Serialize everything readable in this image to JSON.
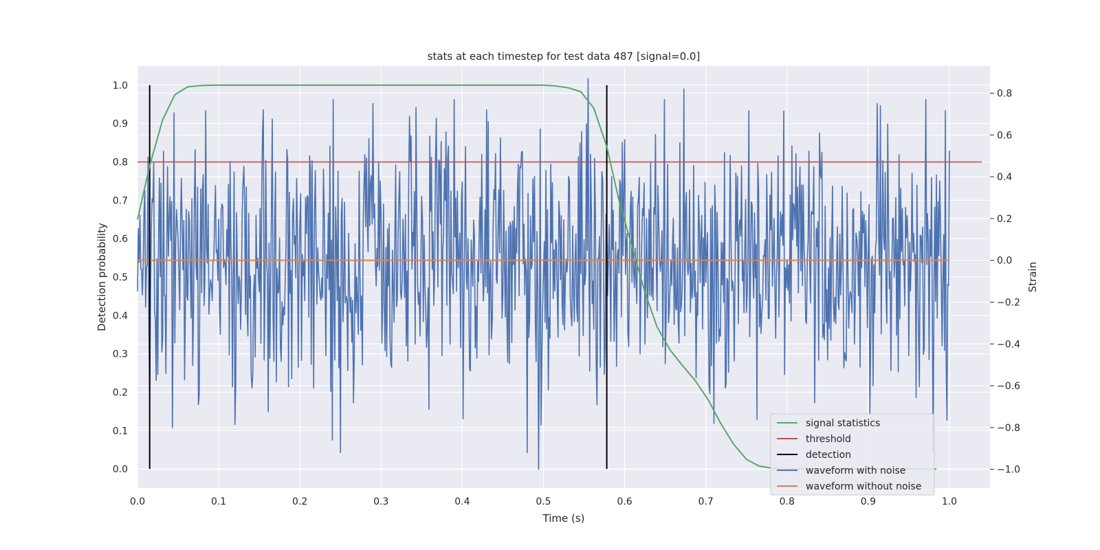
{
  "chart_data": {
    "type": "line",
    "title": "stats at each timestep for test data 487 [signal=0.0]",
    "xlabel": "Time (s)",
    "ylabel": "Detection probability",
    "ylabel_right": "Strain",
    "xlim": [
      0.0,
      1.05
    ],
    "ylim": [
      -0.05,
      1.05
    ],
    "ylim_right": [
      -1.09,
      0.93
    ],
    "xticks": [
      "0.0",
      "0.1",
      "0.2",
      "0.3",
      "0.4",
      "0.5",
      "0.6",
      "0.7",
      "0.8",
      "0.9",
      "1.0"
    ],
    "yticks": [
      "0.0",
      "0.1",
      "0.2",
      "0.3",
      "0.4",
      "0.5",
      "0.6",
      "0.7",
      "0.8",
      "0.9",
      "1.0"
    ],
    "yticks_right": [
      "−1.0",
      "−0.8",
      "−0.6",
      "−0.4",
      "−0.2",
      "0.0",
      "0.2",
      "0.4",
      "0.6",
      "0.8"
    ],
    "grid": true,
    "legend_position": "lower-right",
    "background": "#EAEAF2",
    "series": [
      {
        "name": "signal statistics",
        "color": "#55A868",
        "axis": "left",
        "x": [
          0.0,
          0.015,
          0.031,
          0.046,
          0.062,
          0.078,
          0.093,
          0.2,
          0.3,
          0.4,
          0.5,
          0.515,
          0.531,
          0.546,
          0.562,
          0.578,
          0.593,
          0.609,
          0.625,
          0.64,
          0.656,
          0.671,
          0.687,
          0.703,
          0.718,
          0.734,
          0.75,
          0.765,
          0.781,
          0.796,
          0.812,
          0.828,
          0.843,
          0.859,
          0.875,
          0.89,
          0.906,
          0.921,
          0.937,
          0.953,
          0.968,
          0.984
        ],
        "y": [
          0.65,
          0.79,
          0.91,
          0.975,
          0.996,
          0.999,
          1.0,
          1.0,
          1.0,
          1.0,
          1.0,
          0.998,
          0.993,
          0.983,
          0.94,
          0.84,
          0.7,
          0.58,
          0.46,
          0.37,
          0.31,
          0.27,
          0.23,
          0.18,
          0.12,
          0.065,
          0.025,
          0.008,
          0.002,
          0.0,
          0.0,
          0.0,
          0.0,
          0.0,
          0.0,
          0.0,
          0.0,
          0.0,
          0.0,
          0.0,
          0.0,
          0.0
        ]
      },
      {
        "name": "threshold",
        "color": "#C44E52",
        "axis": "left",
        "x": [
          0.0,
          1.04
        ],
        "y": [
          0.8,
          0.8
        ]
      },
      {
        "name": "detection",
        "color": "#000000",
        "axis": "left",
        "segments": [
          {
            "x": 0.015,
            "y": [
              0.0,
              1.0
            ]
          },
          {
            "x": 0.578,
            "y": [
              0.0,
              1.0
            ]
          }
        ]
      },
      {
        "name": "waveform with noise",
        "color": "#4C72B0",
        "axis": "right",
        "x_range": [
          0.0,
          1.0
        ],
        "value_range": [
          -1.0,
          0.87
        ],
        "peaks": [
          {
            "x": 0.015,
            "y": -0.7
          },
          {
            "x": 0.043,
            "y": -0.8
          },
          {
            "x": 0.155,
            "y": 0.72
          },
          {
            "x": 0.24,
            "y": -0.86
          },
          {
            "x": 0.25,
            "y": -0.92
          },
          {
            "x": 0.29,
            "y": 0.75
          },
          {
            "x": 0.39,
            "y": 0.77
          },
          {
            "x": 0.48,
            "y": -0.92
          },
          {
            "x": 0.494,
            "y": -1.0
          },
          {
            "x": 0.555,
            "y": 0.87
          },
          {
            "x": 0.673,
            "y": 0.82
          },
          {
            "x": 0.71,
            "y": -0.78
          },
          {
            "x": 0.915,
            "y": 0.74
          },
          {
            "x": 0.98,
            "y": -0.92
          }
        ]
      },
      {
        "name": "waveform without noise",
        "color": "#DD8452",
        "axis": "right",
        "x": [
          0.0,
          1.0
        ],
        "y": [
          0.0,
          0.0
        ]
      }
    ]
  }
}
